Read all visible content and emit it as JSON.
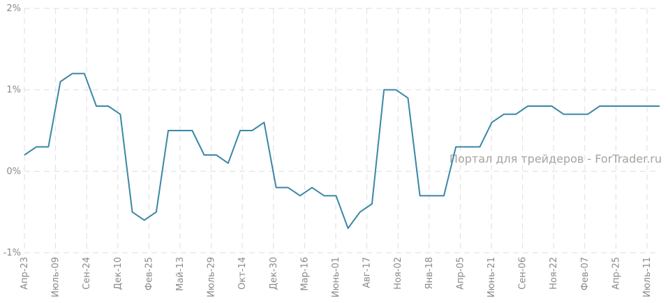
{
  "chart_data": {
    "type": "line",
    "watermark": "Портал для трейдеров - ForTrader.ru",
    "y_ticks": [
      "2%",
      "1%",
      "0%",
      "-1%"
    ],
    "ylim": [
      -1,
      2
    ],
    "x_tick_labels": [
      "Апр-23",
      "Июль-09",
      "Сен-24",
      "Дек-10",
      "Фев-25",
      "Май-13",
      "Июль-29",
      "Окт-14",
      "Дек-30",
      "Мар-16",
      "Июнь-01",
      "Авг-17",
      "Ноя-02",
      "Янв-18",
      "Апр-05",
      "Июнь-21",
      "Сен-06",
      "Ноя-22",
      "Фев-07",
      "Апр-25",
      "Июль-11"
    ],
    "grid": true,
    "series": [
      {
        "color": "#3a87a6",
        "values": [
          0.2,
          0.3,
          0.3,
          1.1,
          1.2,
          1.2,
          0.8,
          0.8,
          0.7,
          -0.5,
          -0.6,
          -0.5,
          0.5,
          0.5,
          0.5,
          0.2,
          0.2,
          0.1,
          0.5,
          0.5,
          0.6,
          -0.2,
          -0.2,
          -0.3,
          -0.2,
          -0.3,
          -0.3,
          -0.7,
          -0.5,
          -0.4,
          1.0,
          1.0,
          0.9,
          -0.3,
          -0.3,
          -0.3,
          0.3,
          0.3,
          0.3,
          0.6,
          0.7,
          0.7,
          0.8,
          0.8,
          0.8,
          0.7,
          0.7,
          0.7,
          0.8,
          0.8,
          0.8,
          0.8,
          0.8,
          0.8
        ]
      }
    ]
  }
}
